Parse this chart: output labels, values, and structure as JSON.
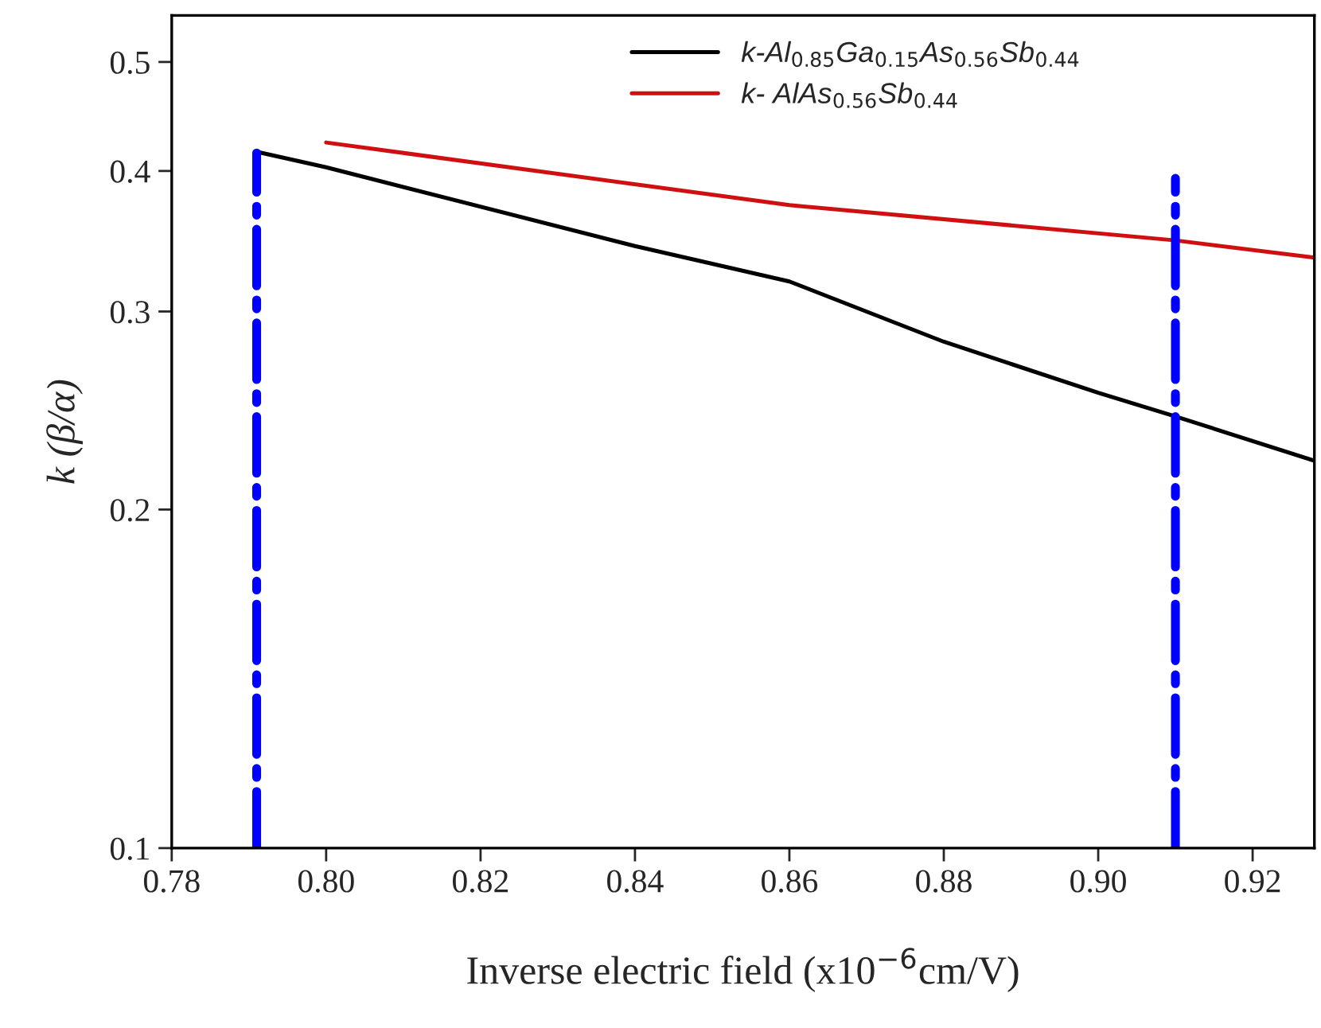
{
  "chart_data": {
    "type": "line",
    "xlabel": "Inverse electric field (x10$^{−6}$cm/V)",
    "ylabel": "k (β/α)",
    "log": "y",
    "xlim": [
      0.78,
      0.928
    ],
    "xticks": [
      0.78,
      {
        "value": 0.8,
        "label": "0.80"
      },
      0.82,
      0.84,
      0.86,
      0.88,
      {
        "value": 0.9,
        "label": "0.90"
      },
      0.92
    ],
    "ylim": [
      0.1,
      0.55
    ],
    "yticks": [
      0.1,
      0.2,
      0.3,
      0.4,
      0.5
    ],
    "grid": false,
    "legend": "top right",
    "series": [
      {
        "name": "k-Al$_{0.85}$Ga$_{0.15}$As$_{0.56}$Sb$_{0.44}$",
        "color": "#000000",
        "line_style": "solid",
        "x": [
          0.791,
          0.8,
          0.84,
          0.86,
          0.88,
          0.9,
          0.91,
          0.928
        ],
        "values": [
          0.416,
          0.403,
          0.343,
          0.319,
          0.282,
          0.254,
          0.242,
          0.221
        ]
      },
      {
        "name": "k- AlAs$_{0.56}$Sb$_{0.44}$",
        "color": "#d01010",
        "line_style": "solid",
        "x": [
          0.8,
          0.86,
          0.91,
          0.928
        ],
        "values": [
          0.424,
          0.373,
          0.347,
          0.335
        ]
      },
      {
        "color": "#0000ff",
        "line_style": "dashdot",
        "x": [
          0.791,
          0.791
        ],
        "values": [
          0.1,
          0.415
        ]
      },
      {
        "color": "#0000ff",
        "line_style": "dashdot",
        "x": [
          0.91,
          0.91
        ],
        "values": [
          0.1,
          0.394
        ]
      }
    ]
  }
}
